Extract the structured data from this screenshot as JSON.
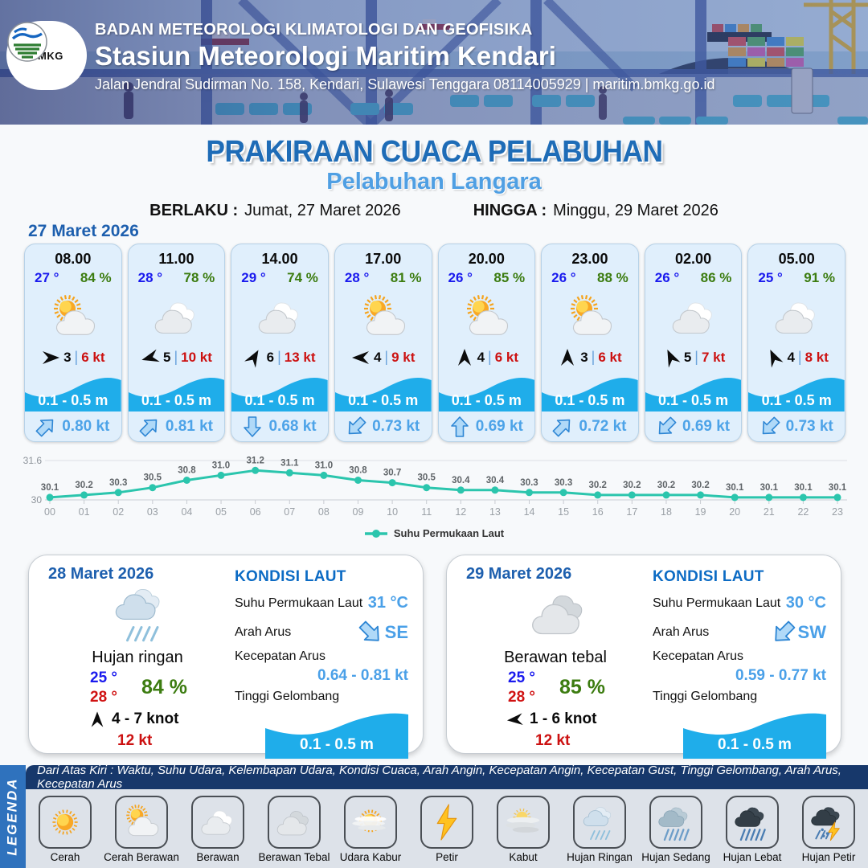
{
  "palette": {
    "title_blue": "#1e6cb7",
    "subtitle_blue": "#4f9fe3",
    "date_blue": "#1d5fae",
    "temp_blue": "#1a1aee",
    "humidity_green": "#3c7c10",
    "gust_red": "#cc1111",
    "pipe_blue": "#6ba3dc",
    "wave_cyan": "#1fadea",
    "current_blue": "#4da3e8",
    "chart_teal": "#2bc5ad",
    "sea_value_blue": "#4aa0e8",
    "kondisi_blue": "#0c6bc4",
    "legend_band_blue": "#2f72bd",
    "legend_bar_navy": "#17386b",
    "card_bg": "#e0effc",
    "legend_bg": "#dde2e9"
  },
  "header": {
    "logo_text": "BMKG",
    "agency": "BADAN METEOROLOGI KLIMATOLOGI DAN GEOFISIKA",
    "station": "Stasiun Meteorologi Maritim Kendari",
    "address": "Jalan Jendral Sudirman No. 158, Kendari, Sulawesi Tenggara  08114005929 | maritim.bmkg.go.id"
  },
  "title": {
    "main": "PRAKIRAAN CUACA PELABUHAN",
    "sub": "Pelabuhan Langara",
    "berlaku_label": "BERLAKU :",
    "berlaku_value": "Jumat, 27 Maret 2026",
    "hingga_label": "HINGGA :",
    "hingga_value": "Minggu, 29 Maret 2026"
  },
  "forecast": {
    "date_label": "27 Maret 2026",
    "pipe": "|",
    "cards": [
      {
        "time": "08.00",
        "temp": "27 °",
        "hum": "84 %",
        "icon": "cerah-berawan",
        "wind_deg": 90,
        "wind": "3",
        "gust": "6 kt",
        "wave": "0.1 - 0.5 m",
        "current_deg": 45,
        "current": "0.80 kt"
      },
      {
        "time": "11.00",
        "temp": "28 °",
        "hum": "78 %",
        "icon": "berawan",
        "wind_deg": 255,
        "wind": "5",
        "gust": "10 kt",
        "wave": "0.1 - 0.5 m",
        "current_deg": 45,
        "current": "0.81 kt"
      },
      {
        "time": "14.00",
        "temp": "29 °",
        "hum": "74 %",
        "icon": "berawan",
        "wind_deg": 30,
        "wind": "6",
        "gust": "13 kt",
        "wave": "0.1 - 0.5 m",
        "current_deg": 180,
        "current": "0.68 kt"
      },
      {
        "time": "17.00",
        "temp": "28 °",
        "hum": "81 %",
        "icon": "cerah-berawan",
        "wind_deg": 270,
        "wind": "4",
        "gust": "9 kt",
        "wave": "0.1 - 0.5 m",
        "current_deg": 225,
        "current": "0.73 kt"
      },
      {
        "time": "20.00",
        "temp": "26 °",
        "hum": "85 %",
        "icon": "cerah-berawan",
        "wind_deg": 0,
        "wind": "4",
        "gust": "6 kt",
        "wave": "0.1 - 0.5 m",
        "current_deg": 0,
        "current": "0.69 kt"
      },
      {
        "time": "23.00",
        "temp": "26 °",
        "hum": "88 %",
        "icon": "cerah-berawan",
        "wind_deg": 0,
        "wind": "3",
        "gust": "6 kt",
        "wave": "0.1 - 0.5 m",
        "current_deg": 45,
        "current": "0.72 kt"
      },
      {
        "time": "02.00",
        "temp": "26 °",
        "hum": "86 %",
        "icon": "berawan",
        "wind_deg": 335,
        "wind": "5",
        "gust": "7 kt",
        "wave": "0.1 - 0.5 m",
        "current_deg": 225,
        "current": "0.69 kt"
      },
      {
        "time": "05.00",
        "temp": "25 °",
        "hum": "91 %",
        "icon": "berawan",
        "wind_deg": 335,
        "wind": "4",
        "gust": "8 kt",
        "wave": "0.1 - 0.5 m",
        "current_deg": 225,
        "current": "0.73 kt"
      }
    ]
  },
  "chart_data": {
    "type": "line",
    "series_label": "Suhu Permukaan Laut",
    "x": [
      "00",
      "01",
      "02",
      "03",
      "04",
      "05",
      "06",
      "07",
      "08",
      "09",
      "10",
      "11",
      "12",
      "13",
      "14",
      "15",
      "16",
      "17",
      "18",
      "19",
      "20",
      "21",
      "22",
      "23"
    ],
    "values": [
      30.1,
      30.2,
      30.3,
      30.5,
      30.8,
      31.0,
      31.2,
      31.1,
      31.0,
      30.8,
      30.7,
      30.5,
      30.4,
      30.4,
      30.3,
      30.3,
      30.2,
      30.2,
      30.2,
      30.2,
      30.1,
      30.1,
      30.1,
      30.1
    ],
    "ylim": [
      30,
      31.6
    ],
    "ytick_labels": [
      "31.6",
      "30"
    ],
    "grid": "top-and-baseline",
    "legend_position": "bottom-center"
  },
  "sea_labels": {
    "title": "KONDISI LAUT",
    "sst": "Suhu Permukaan Laut",
    "dir": "Arah Arus",
    "spd": "Kecepatan Arus",
    "wave": "Tinggi Gelombang"
  },
  "days": [
    {
      "date": "28 Maret 2026",
      "icon": "hujan-ringan",
      "cond": "Hujan ringan",
      "tmin": "25 °",
      "tmax": "28 °",
      "hum": "84 %",
      "wind_deg": 0,
      "wind": "4 - 7 knot",
      "gust": "12 kt",
      "sea": {
        "sst": "31 °C",
        "dir": "SE",
        "dir_deg": 135,
        "spd": "0.64 - 0.81 kt",
        "wave": "0.1 - 0.5 m"
      }
    },
    {
      "date": "29 Maret 2026",
      "icon": "berawan-tebal",
      "cond": "Berawan tebal",
      "tmin": "25 °",
      "tmax": "28 °",
      "hum": "85 %",
      "wind_deg": 265,
      "wind": "1 - 6 knot",
      "gust": "12 kt",
      "sea": {
        "sst": "30 °C",
        "dir": "SW",
        "dir_deg": 225,
        "spd": "0.59 - 0.77 kt",
        "wave": "0.1 - 0.5 m"
      }
    }
  ],
  "legend": {
    "band": "LEGENDA",
    "note": "Dari Atas Kiri : Waktu, Suhu Udara, Kelembapan Udara, Kondisi Cuaca, Arah Angin, Kecepatan Angin, Kecepatan Gust, Tinggi Gelombang, Arah Arus, Kecepatan Arus",
    "items": [
      {
        "icon": "cerah",
        "label": "Cerah"
      },
      {
        "icon": "cerah-berawan",
        "label": "Cerah Berawan"
      },
      {
        "icon": "berawan",
        "label": "Berawan"
      },
      {
        "icon": "berawan-tebal",
        "label": "Berawan Tebal"
      },
      {
        "icon": "udara-kabur",
        "label": "Udara Kabur"
      },
      {
        "icon": "petir",
        "label": "Petir"
      },
      {
        "icon": "kabut",
        "label": "Kabut"
      },
      {
        "icon": "hujan-ringan",
        "label": "Hujan Ringan"
      },
      {
        "icon": "hujan-sedang",
        "label": "Hujan Sedang"
      },
      {
        "icon": "hujan-lebat",
        "label": "Hujan Lebat"
      },
      {
        "icon": "hujan-petir",
        "label": "Hujan Petir"
      }
    ]
  }
}
